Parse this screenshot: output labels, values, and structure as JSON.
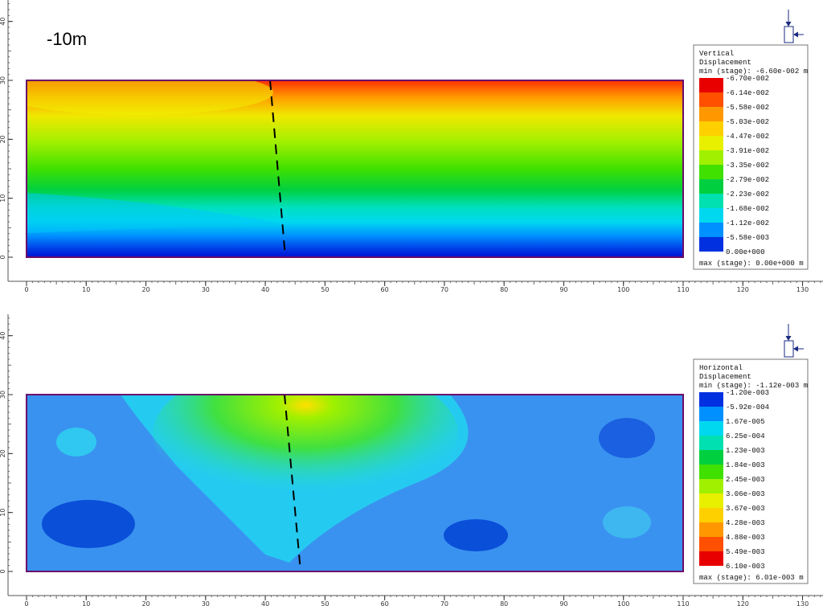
{
  "label": "-10m",
  "panels": [
    {
      "x_ticks": [
        0,
        10,
        20,
        30,
        40,
        50,
        60,
        70,
        80,
        90,
        100,
        110,
        120,
        130
      ],
      "y_ticks": [
        0,
        10,
        20,
        30,
        40
      ],
      "legend": {
        "title": [
          "Vertical",
          "Displacement"
        ],
        "min": "min (stage): -6.60e-002 m",
        "levels": [
          "-6.70e-002",
          "-6.14e-002",
          "-5.58e-002",
          "-5.03e-002",
          "-4.47e-002",
          "-3.91e-002",
          "-3.35e-002",
          "-2.79e-002",
          "-2.23e-002",
          "-1.68e-002",
          "-1.12e-002",
          "-5.58e-003",
          "0.00e+000"
        ],
        "max": "max (stage): 0.00e+000 m"
      }
    },
    {
      "x_ticks": [
        0,
        10,
        20,
        30,
        40,
        50,
        60,
        70,
        80,
        90,
        100,
        110,
        120,
        130
      ],
      "y_ticks": [
        0,
        10,
        20,
        30,
        40
      ],
      "legend": {
        "title": [
          "Horizontal",
          "Displacement"
        ],
        "min": "min (stage): -1.12e-003 m",
        "levels": [
          "-1.20e-003",
          "-5.92e-004",
          "1.67e-005",
          "6.25e-004",
          "1.23e-003",
          "1.84e-003",
          "2.45e-003",
          "3.06e-003",
          "3.67e-003",
          "4.28e-003",
          "4.88e-003",
          "5.49e-003",
          "6.10e-003"
        ],
        "max": "max (stage): 6.01e-003 m"
      }
    }
  ]
}
